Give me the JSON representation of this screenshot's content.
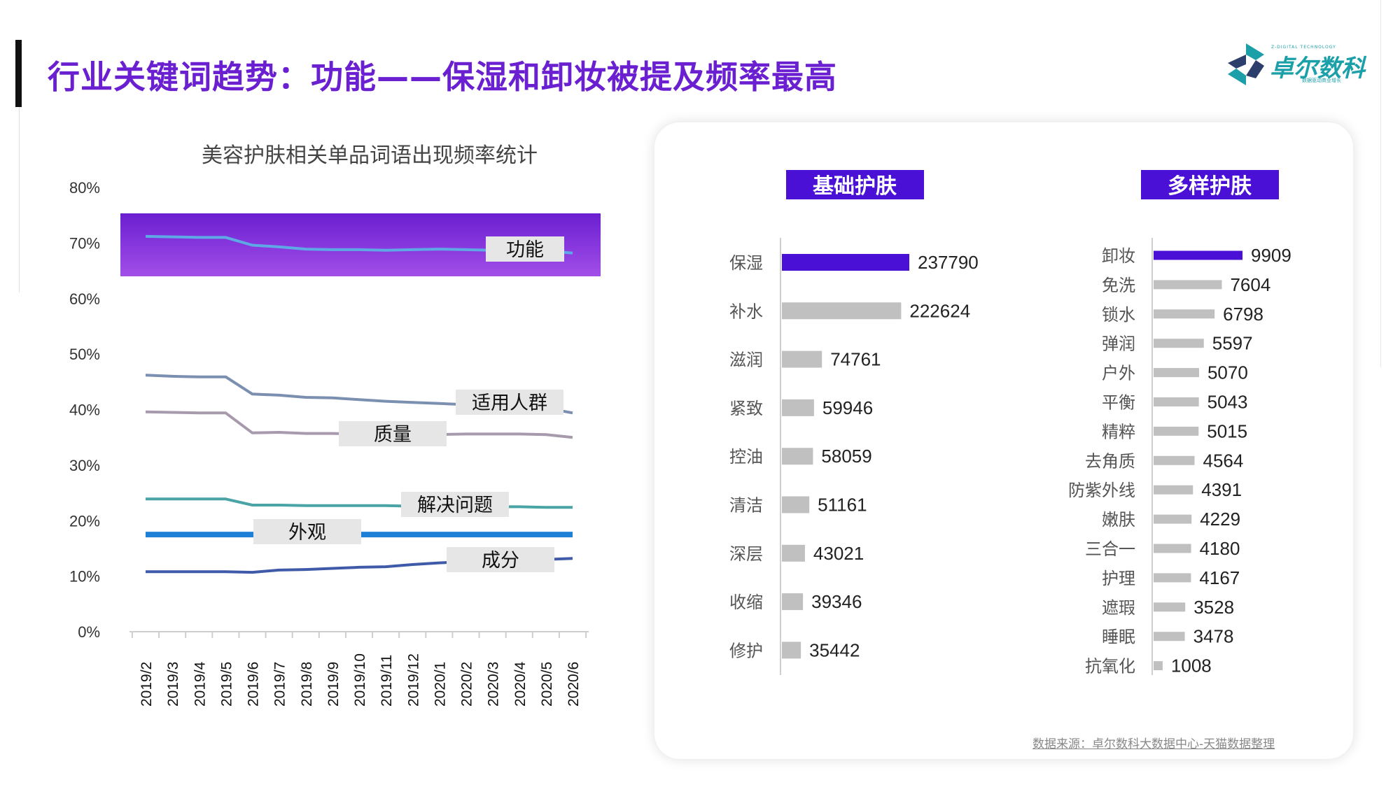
{
  "title": "行业关键词趋势：功能——保湿和卸妆被提及频率最高",
  "logo": {
    "brand": "卓尔数科",
    "tagline_top": "Z-DIGITAL TECHNOLOGY",
    "tagline_bottom": "数据驱动商业增长",
    "colors": [
      "#1b9fa8",
      "#2c3e6b"
    ]
  },
  "colors": {
    "title": "#6a1fd0",
    "highlight_band": [
      "#6a1fd0",
      "#a24ee8"
    ],
    "bar_primary": "#4a10d6",
    "bar_secondary": "#c0c0c0",
    "series": [
      "#5fa8e6",
      "#7b8fb0",
      "#a79aad",
      "#4aa3a5",
      "#1e7fd6",
      "#3f5aa8"
    ]
  },
  "left_chart": {
    "title": "美容护肤相关单品词语出现频率统计",
    "y_ticks": [
      "0%",
      "10%",
      "20%",
      "30%",
      "40%",
      "50%",
      "60%",
      "70%",
      "80%"
    ],
    "x_labels": [
      "2019/2",
      "2019/3",
      "2019/4",
      "2019/5",
      "2019/6",
      "2019/7",
      "2019/8",
      "2019/9",
      "2019/10",
      "2019/11",
      "2019/12",
      "2020/1",
      "2020/2",
      "2020/3",
      "2020/4",
      "2020/5",
      "2020/6"
    ]
  },
  "right_panel": {
    "left_heading": "基础护肤",
    "right_heading": "多样护肤",
    "source": "数据来源：卓尔数科大数据中心-天猫数据整理"
  },
  "chart_data": [
    {
      "type": "line",
      "title": "美容护肤相关单品词语出现频率统计",
      "x": [
        "2019/2",
        "2019/3",
        "2019/4",
        "2019/5",
        "2019/6",
        "2019/7",
        "2019/8",
        "2019/9",
        "2019/10",
        "2019/11",
        "2019/12",
        "2020/1",
        "2020/2",
        "2020/3",
        "2020/4",
        "2020/5",
        "2020/6"
      ],
      "ylim": [
        0,
        80
      ],
      "y_unit": "%",
      "highlight_series": "功能",
      "series": [
        {
          "name": "功能",
          "values": [
            71.2,
            71.1,
            71.0,
            71.0,
            69.6,
            69.3,
            68.9,
            68.8,
            68.8,
            68.7,
            68.8,
            68.9,
            68.8,
            68.7,
            68.7,
            68.6,
            68.2
          ]
        },
        {
          "name": "适用人群",
          "values": [
            46.2,
            46.0,
            45.9,
            45.9,
            42.8,
            42.6,
            42.2,
            42.1,
            41.8,
            41.5,
            41.3,
            41.1,
            40.9,
            40.7,
            40.6,
            40.3,
            39.4
          ]
        },
        {
          "name": "质量",
          "values": [
            39.6,
            39.5,
            39.4,
            39.4,
            35.8,
            35.9,
            35.7,
            35.7,
            35.6,
            35.6,
            35.5,
            35.5,
            35.6,
            35.6,
            35.6,
            35.5,
            35.0
          ]
        },
        {
          "name": "解决问题",
          "values": [
            23.9,
            23.9,
            23.9,
            23.9,
            22.8,
            22.8,
            22.7,
            22.7,
            22.7,
            22.7,
            22.6,
            22.6,
            22.6,
            22.5,
            22.5,
            22.4,
            22.4
          ]
        },
        {
          "name": "外观",
          "values": [
            17.5,
            17.5,
            17.5,
            17.5,
            17.5,
            17.5,
            17.5,
            17.5,
            17.5,
            17.5,
            17.5,
            17.5,
            17.5,
            17.5,
            17.5,
            17.5,
            17.5
          ]
        },
        {
          "name": "成分",
          "values": [
            10.8,
            10.8,
            10.8,
            10.8,
            10.7,
            11.1,
            11.2,
            11.4,
            11.6,
            11.7,
            12.1,
            12.4,
            12.6,
            12.8,
            12.9,
            13.0,
            13.2
          ]
        }
      ]
    },
    {
      "type": "bar",
      "orientation": "horizontal",
      "title": "基础护肤",
      "categories": [
        "保湿",
        "补水",
        "滋润",
        "紧致",
        "控油",
        "清洁",
        "深层",
        "收缩",
        "修护"
      ],
      "values": [
        237790,
        222624,
        74761,
        59946,
        58059,
        51161,
        43021,
        39346,
        35442
      ]
    },
    {
      "type": "bar",
      "orientation": "horizontal",
      "title": "多样护肤",
      "categories": [
        "卸妆",
        "免洗",
        "锁水",
        "弹润",
        "户外",
        "平衡",
        "精粹",
        "去角质",
        "防紫外线",
        "嫩肤",
        "三合一",
        "护理",
        "遮瑕",
        "睡眠",
        "抗氧化"
      ],
      "values": [
        9909,
        7604,
        6798,
        5597,
        5070,
        5043,
        5015,
        4564,
        4391,
        4229,
        4180,
        4167,
        3528,
        3478,
        1008
      ]
    }
  ]
}
